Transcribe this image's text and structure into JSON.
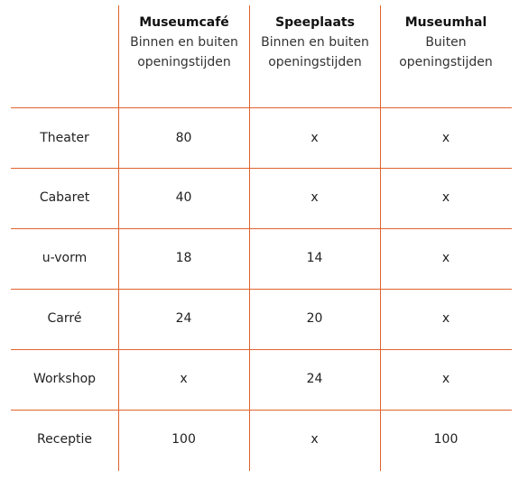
{
  "columns": [
    {
      "title": "Museumcafé",
      "subtitle": "Binnen en buiten openingstijden"
    },
    {
      "title": "Speeplaats",
      "subtitle": "Binnen en buiten openingstijden"
    },
    {
      "title": "Museumhal",
      "subtitle": "Buiten openingstijden"
    }
  ],
  "rows": [
    {
      "label": "Theater",
      "values": [
        "80",
        "x",
        "x"
      ]
    },
    {
      "label": "Cabaret",
      "values": [
        "40",
        "x",
        "x"
      ]
    },
    {
      "label": "u-vorm",
      "values": [
        "18",
        "14",
        "x"
      ]
    },
    {
      "label": "Carré",
      "values": [
        "24",
        "20",
        "x"
      ]
    },
    {
      "label": "Workshop",
      "values": [
        "x",
        "24",
        "x"
      ]
    },
    {
      "label": "Receptie",
      "values": [
        "100",
        "x",
        "100"
      ]
    }
  ],
  "colors": {
    "rule": "#e0642e"
  }
}
